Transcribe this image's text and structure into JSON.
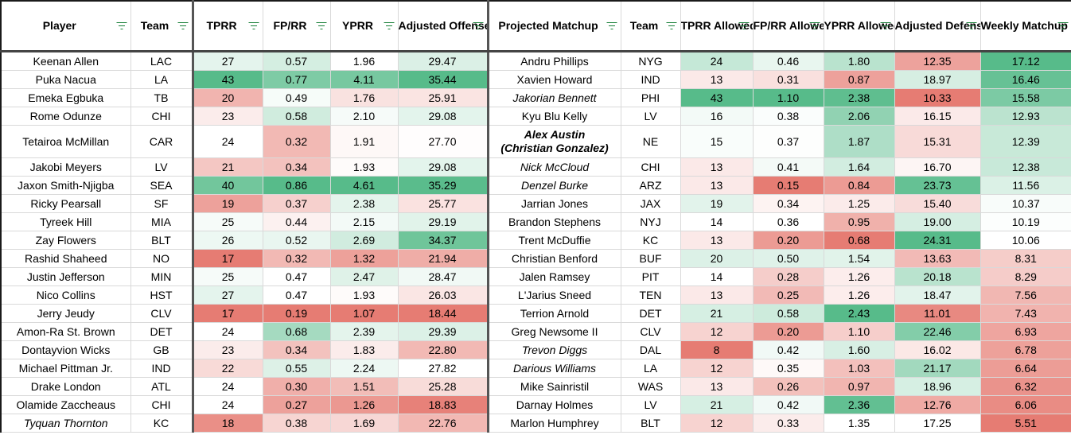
{
  "headers": [
    {
      "label": "Player",
      "filter": true
    },
    {
      "label": "Team",
      "filter": true
    },
    {
      "label": "TPRR",
      "filter": true
    },
    {
      "label": "FP/RR",
      "filter": true
    },
    {
      "label": "YPRR",
      "filter": true
    },
    {
      "label": "Adjusted Offense Score",
      "filter": true
    },
    {
      "label": "Projected Matchup",
      "filter": true
    },
    {
      "label": "Team",
      "filter": true
    },
    {
      "label": "TPRR Allowed",
      "filter": true
    },
    {
      "label": "FP/RR Allowed",
      "filter": true
    },
    {
      "label": "YPRR Allowed",
      "filter": true
    },
    {
      "label": "Adjusted Defense Score",
      "filter": true
    },
    {
      "label": "Weekly Matchup Score",
      "filter": true
    }
  ],
  "rows": [
    {
      "player": "Keenan Allen",
      "team": "LAC",
      "tprr": "27",
      "fprr": "0.57",
      "yprr": "1.96",
      "aos": "29.47",
      "matchup": "Andru Phillips",
      "mteam": "NYG",
      "tprr_a": "24",
      "fprr_a": "0.46",
      "yprr_a": "1.80",
      "ads": "12.35",
      "wms": "17.12"
    },
    {
      "player": "Puka Nacua",
      "team": "LA",
      "tprr": "43",
      "fprr": "0.77",
      "yprr": "4.11",
      "aos": "35.44",
      "matchup": "Xavien Howard",
      "mteam": "IND",
      "tprr_a": "13",
      "fprr_a": "0.31",
      "yprr_a": "0.87",
      "ads": "18.97",
      "wms": "16.46"
    },
    {
      "player": "Emeka Egbuka",
      "team": "TB",
      "tprr": "20",
      "fprr": "0.49",
      "yprr": "1.76",
      "aos": "25.91",
      "matchup": "Jakorian Bennett",
      "mteam": "PHI",
      "tprr_a": "43",
      "fprr_a": "1.10",
      "yprr_a": "2.38",
      "ads": "10.33",
      "wms": "15.58",
      "mstyle": "it"
    },
    {
      "player": "Rome Odunze",
      "team": "CHI",
      "tprr": "23",
      "fprr": "0.58",
      "yprr": "2.10",
      "aos": "29.08",
      "matchup": "Kyu Blu Kelly",
      "mteam": "LV",
      "tprr_a": "16",
      "fprr_a": "0.38",
      "yprr_a": "2.06",
      "ads": "16.15",
      "wms": "12.93"
    },
    {
      "player": "Tetairoa McMillan",
      "team": "CAR",
      "tprr": "24",
      "fprr": "0.32",
      "yprr": "1.91",
      "aos": "27.70",
      "matchup": "Alex Austin",
      "matchup2": "(Christian Gonzalez)",
      "mteam": "NE",
      "tprr_a": "15",
      "fprr_a": "0.37",
      "yprr_a": "1.87",
      "ads": "15.31",
      "wms": "12.39",
      "mstyle": "bi",
      "tall": true
    },
    {
      "player": "Jakobi Meyers",
      "team": "LV",
      "tprr": "21",
      "fprr": "0.34",
      "yprr": "1.93",
      "aos": "29.08",
      "matchup": "Nick McCloud",
      "mteam": "CHI",
      "tprr_a": "13",
      "fprr_a": "0.41",
      "yprr_a": "1.64",
      "ads": "16.70",
      "wms": "12.38",
      "mstyle": "it"
    },
    {
      "player": "Jaxon Smith-Njigba",
      "team": "SEA",
      "tprr": "40",
      "fprr": "0.86",
      "yprr": "4.61",
      "aos": "35.29",
      "matchup": "Denzel Burke",
      "mteam": "ARZ",
      "tprr_a": "13",
      "fprr_a": "0.15",
      "yprr_a": "0.84",
      "ads": "23.73",
      "wms": "11.56",
      "mstyle": "it"
    },
    {
      "player": "Ricky Pearsall",
      "team": "SF",
      "tprr": "19",
      "fprr": "0.37",
      "yprr": "2.38",
      "aos": "25.77",
      "matchup": "Jarrian Jones",
      "mteam": "JAX",
      "tprr_a": "19",
      "fprr_a": "0.34",
      "yprr_a": "1.25",
      "ads": "15.40",
      "wms": "10.37"
    },
    {
      "player": "Tyreek Hill",
      "team": "MIA",
      "tprr": "25",
      "fprr": "0.44",
      "yprr": "2.15",
      "aos": "29.19",
      "matchup": "Brandon Stephens",
      "mteam": "NYJ",
      "tprr_a": "14",
      "fprr_a": "0.36",
      "yprr_a": "0.95",
      "ads": "19.00",
      "wms": "10.19"
    },
    {
      "player": "Zay Flowers",
      "team": "BLT",
      "tprr": "26",
      "fprr": "0.52",
      "yprr": "2.69",
      "aos": "34.37",
      "matchup": "Trent McDuffie",
      "mteam": "KC",
      "tprr_a": "13",
      "fprr_a": "0.20",
      "yprr_a": "0.68",
      "ads": "24.31",
      "wms": "10.06"
    },
    {
      "player": "Rashid Shaheed",
      "team": "NO",
      "tprr": "17",
      "fprr": "0.32",
      "yprr": "1.32",
      "aos": "21.94",
      "matchup": "Christian Benford",
      "mteam": "BUF",
      "tprr_a": "20",
      "fprr_a": "0.50",
      "yprr_a": "1.54",
      "ads": "13.63",
      "wms": "8.31"
    },
    {
      "player": "Justin Jefferson",
      "team": "MIN",
      "tprr": "25",
      "fprr": "0.47",
      "yprr": "2.47",
      "aos": "28.47",
      "matchup": "Jalen Ramsey",
      "mteam": "PIT",
      "tprr_a": "14",
      "fprr_a": "0.28",
      "yprr_a": "1.26",
      "ads": "20.18",
      "wms": "8.29"
    },
    {
      "player": "Nico Collins",
      "team": "HST",
      "tprr": "27",
      "fprr": "0.47",
      "yprr": "1.93",
      "aos": "26.03",
      "matchup": "L'Jarius Sneed",
      "mteam": "TEN",
      "tprr_a": "13",
      "fprr_a": "0.25",
      "yprr_a": "1.26",
      "ads": "18.47",
      "wms": "7.56"
    },
    {
      "player": "Jerry Jeudy",
      "team": "CLV",
      "tprr": "17",
      "fprr": "0.19",
      "yprr": "1.07",
      "aos": "18.44",
      "matchup": "Terrion Arnold",
      "mteam": "DET",
      "tprr_a": "21",
      "fprr_a": "0.58",
      "yprr_a": "2.43",
      "ads": "11.01",
      "wms": "7.43"
    },
    {
      "player": "Amon-Ra St. Brown",
      "team": "DET",
      "tprr": "24",
      "fprr": "0.68",
      "yprr": "2.39",
      "aos": "29.39",
      "matchup": "Greg Newsome II",
      "mteam": "CLV",
      "tprr_a": "12",
      "fprr_a": "0.20",
      "yprr_a": "1.10",
      "ads": "22.46",
      "wms": "6.93"
    },
    {
      "player": "Dontayvion Wicks",
      "team": "GB",
      "tprr": "23",
      "fprr": "0.34",
      "yprr": "1.83",
      "aos": "22.80",
      "matchup": "Trevon Diggs",
      "mteam": "DAL",
      "tprr_a": "8",
      "fprr_a": "0.42",
      "yprr_a": "1.60",
      "ads": "16.02",
      "wms": "6.78",
      "mstyle": "it"
    },
    {
      "player": "Michael Pittman Jr.",
      "team": "IND",
      "tprr": "22",
      "fprr": "0.55",
      "yprr": "2.24",
      "aos": "27.82",
      "matchup": "Darious Williams",
      "mteam": "LA",
      "tprr_a": "12",
      "fprr_a": "0.35",
      "yprr_a": "1.03",
      "ads": "21.17",
      "wms": "6.64",
      "mstyle": "it"
    },
    {
      "player": "Drake London",
      "team": "ATL",
      "tprr": "24",
      "fprr": "0.30",
      "yprr": "1.51",
      "aos": "25.28",
      "matchup": "Mike Sainristil",
      "mteam": "WAS",
      "tprr_a": "13",
      "fprr_a": "0.26",
      "yprr_a": "0.97",
      "ads": "18.96",
      "wms": "6.32"
    },
    {
      "player": "Olamide Zaccheaus",
      "team": "CHI",
      "tprr": "24",
      "fprr": "0.27",
      "yprr": "1.26",
      "aos": "18.83",
      "matchup": "Darnay Holmes",
      "mteam": "LV",
      "tprr_a": "21",
      "fprr_a": "0.42",
      "yprr_a": "2.36",
      "ads": "12.76",
      "wms": "6.06"
    },
    {
      "player": "Tyquan Thornton",
      "team": "KC",
      "tprr": "18",
      "fprr": "0.38",
      "yprr": "1.69",
      "aos": "22.76",
      "matchup": "Marlon Humphrey",
      "mteam": "BLT",
      "tprr_a": "12",
      "fprr_a": "0.33",
      "yprr_a": "1.35",
      "ads": "17.25",
      "wms": "5.51",
      "pstyle": "it"
    }
  ],
  "colors": {
    "green": "#57bb8a",
    "white": "#ffffff",
    "red": "#e67c73"
  }
}
